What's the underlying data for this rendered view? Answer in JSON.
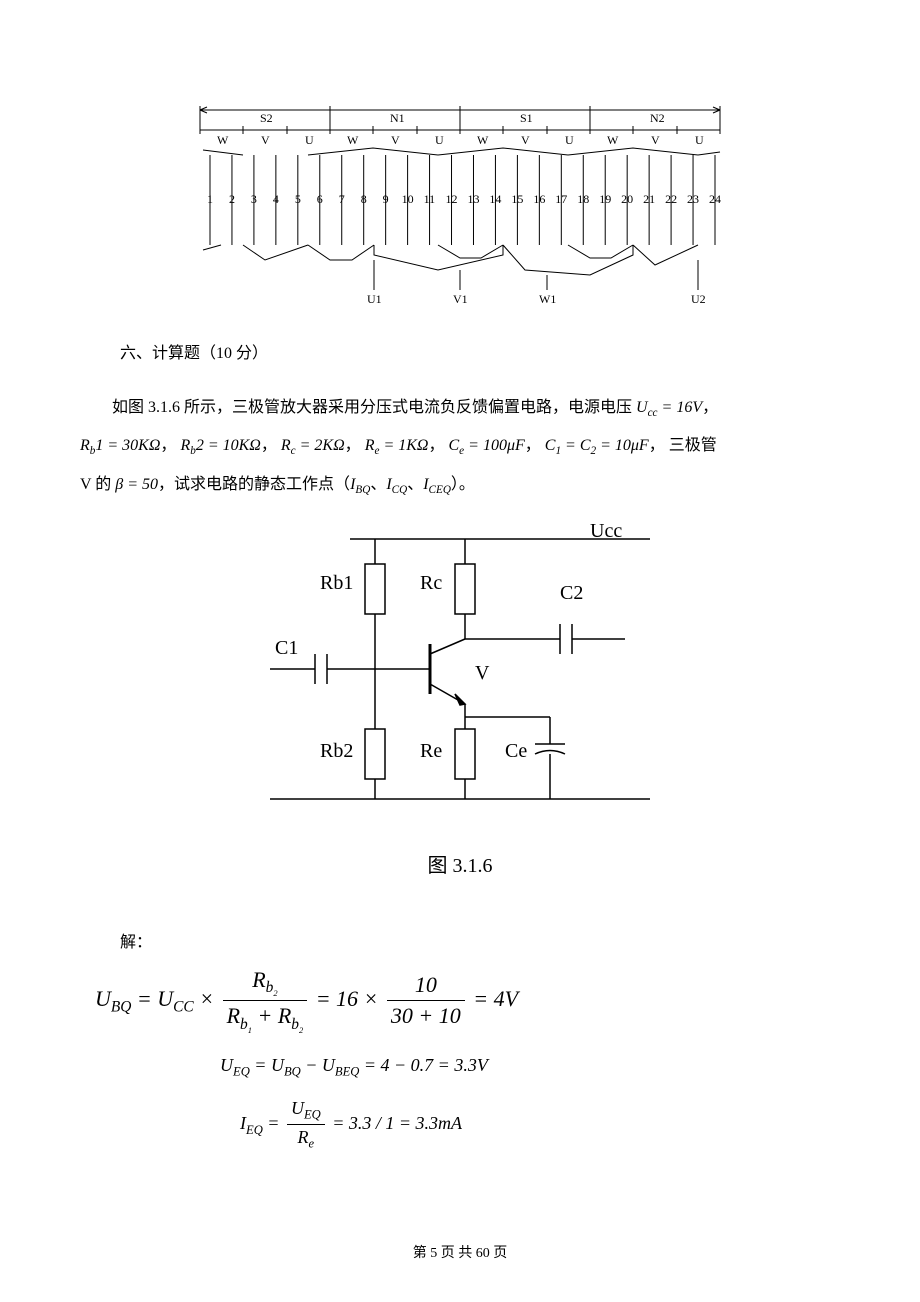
{
  "winding_diagram": {
    "pole_labels": [
      "S2",
      "N1",
      "S1",
      "N2"
    ],
    "phase_labels": [
      "W",
      "V",
      "U",
      "W",
      "V",
      "U",
      "W",
      "V",
      "U",
      "W",
      "V",
      "U"
    ],
    "slot_numbers": [
      "1",
      "2",
      "3",
      "4",
      "5",
      "6",
      "7",
      "8",
      "9",
      "10",
      "11",
      "12",
      "13",
      "14",
      "15",
      "16",
      "17",
      "18",
      "19",
      "20",
      "21",
      "22",
      "23",
      "24"
    ],
    "bottom_labels": [
      "U1",
      "V1",
      "W1",
      "U2"
    ],
    "slot_count": 24,
    "line_color": "#000000",
    "background": "#ffffff",
    "font_size": 12
  },
  "section_heading": "六、计算题（10 分）",
  "problem": {
    "line1_prefix": "如图 3.1.6 所示，三极管放大器采用分压式电流负反馈偏置电路，电源电压",
    "Ucc_expr": "U",
    "Ucc_sub": "cc",
    "Ucc_val": " = 16V",
    "comma": "，",
    "Rb1_label": "R",
    "Rb1_sub": "b",
    "Rb1_suffix": "1 = 30KΩ",
    "Rb2_label": "R",
    "Rb2_sub": "b",
    "Rb2_suffix": "2 = 10KΩ",
    "Rc_label": "R",
    "Rc_sub": "c",
    "Rc_val": " = 2KΩ",
    "Re_label": "R",
    "Re_sub": "e",
    "Re_val": " = 1KΩ",
    "Ce_label": "C",
    "Ce_sub": "e",
    "Ce_val": " = 100μF",
    "C12_label": "C",
    "C1_sub": "1",
    "C12_eq": " = ",
    "C2_sub": "2",
    "C12_val": " = 10μF",
    "tail_prefix": "三极管",
    "line3_prefix": "V 的",
    "beta_expr": "β = 50",
    "line3_mid": "，试求电路的静态工作点（",
    "IBQ": "I",
    "IBQ_sub": "BQ",
    "ICQ": "I",
    "ICQ_sub": "CQ",
    "ICEQ": "I",
    "ICEQ_sub": "CEQ",
    "line3_end": "）。",
    "sep": "、"
  },
  "circuit": {
    "labels": {
      "Ucc": "Ucc",
      "Rb1": "Rb1",
      "Rc": "Rc",
      "C2": "C2",
      "C1": "C1",
      "V": "V",
      "Rb2": "Rb2",
      "Re": "Re",
      "Ce": "Ce"
    },
    "line_color": "#000000",
    "line_width": 1.5,
    "font_size": 20,
    "caption": "图  3.1.6"
  },
  "solution": {
    "label": "解：",
    "eq1": {
      "lhs": "U",
      "lhs_sub": "BQ",
      "eq": " = ",
      "Ucc": "U",
      "Ucc_sub": "CC",
      "mult": " × ",
      "frac1_num_R": "R",
      "frac1_num_sub": "b",
      "frac1_num_ssub": "2",
      "frac1_den_R1": "R",
      "frac1_den_sub1": "b",
      "frac1_den_ssub1": "1",
      "plus": " + ",
      "frac1_den_R2": "R",
      "frac1_den_sub2": "b",
      "frac1_den_ssub2": "2",
      "eq2": " = 16 × ",
      "frac2_num": "10",
      "frac2_den": "30 + 10",
      "result": " = 4V"
    },
    "eq2_text_lhs": "U",
    "eq2_lhs_sub": "EQ",
    "eq2_eq": " = ",
    "eq2_U1": "U",
    "eq2_U1_sub": "BQ",
    "eq2_minus": " − ",
    "eq2_U2": "U",
    "eq2_U2_sub": "BEQ",
    "eq2_rest": " = 4 − 0.7 = 3.3V",
    "eq3_lhs": "I",
    "eq3_lhs_sub": "EQ",
    "eq3_eq": " = ",
    "eq3_num": "U",
    "eq3_num_sub": "EQ",
    "eq3_den": "R",
    "eq3_den_sub": "e",
    "eq3_rest": " = 3.3 / 1 = 3.3mA"
  },
  "footer": {
    "text_prefix": "第 ",
    "page": "5",
    "text_mid": " 页 共 ",
    "total": "60",
    "text_suffix": " 页"
  },
  "colors": {
    "text": "#000000",
    "background": "#ffffff"
  }
}
